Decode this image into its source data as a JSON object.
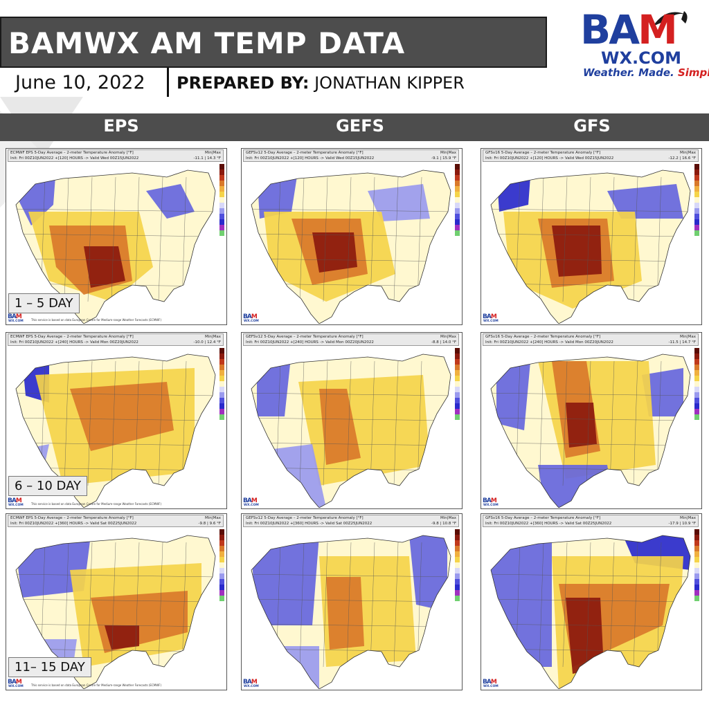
{
  "header": {
    "title": "BAMWX AM TEMP DATA",
    "date": "June 10, 2022",
    "prepared_label": "PREPARED BY:",
    "prepared_name": "JONATHAN KIPPER"
  },
  "logo": {
    "bam": [
      "B",
      "A",
      "M"
    ],
    "wx": "WX.COM",
    "tagline": "Weather. Made.",
    "tagline_accent": "Simple."
  },
  "columns": [
    "EPS",
    "GEFS",
    "GFS"
  ],
  "day_labels": [
    "1 – 5 DAY",
    "6 – 10 DAY",
    "11– 15 DAY"
  ],
  "panels": {
    "eps_1": {
      "title": "ECMWF EPS 5-Day Average – 2-meter Temperature Anomaly [°F]",
      "init": "Init: Fri 00Z10JUN2022 +[120] HOURS -> Valid Wed 00Z15JUN2022",
      "minmax_label": "Min|Max",
      "minmax": "-11.1 | 14.3 °F",
      "credit": "This service is based on data European Centre for Medium-range Weather Forecasts (ECMWF)"
    },
    "gefs_1": {
      "title": "GEFSv12 5-Day Average – 2-meter Temperature Anomaly [°F]",
      "init": "Init: Fri 00Z10JUN2022 +[120] HOURS -> Valid Wed 00Z15JUN2022",
      "minmax_label": "Min|Max",
      "minmax": "-9.1 | 15.9 °F",
      "credit": ""
    },
    "gfs_1": {
      "title": "GFSv16 5-Day Average – 2-meter Temperature Anomaly [°F]",
      "init": "Init: Fri 00Z10JUN2022 +[120] HOURS -> Valid Wed 00Z15JUN2022",
      "minmax_label": "Min|Max",
      "minmax": "-12.2 | 16.6 °F",
      "credit": ""
    },
    "eps_2": {
      "title": "ECMWF EPS 5-Day Average – 2-meter Temperature Anomaly [°F]",
      "init": "Init: Fri 00Z10JUN2022 +[240] HOURS -> Valid Mon 00Z20JUN2022",
      "minmax_label": "Min|Max",
      "minmax": "-10.0 | 12.4 °F",
      "credit": "This service is based on data European Centre for Medium-range Weather Forecasts (ECMWF)"
    },
    "gefs_2": {
      "title": "GEFSv12 5-Day Average – 2-meter Temperature Anomaly [°F]",
      "init": "Init: Fri 00Z10JUN2022 +[240] HOURS -> Valid Mon 00Z20JUN2022",
      "minmax_label": "Min|Max",
      "minmax": "-8.8 | 14.0 °F",
      "credit": ""
    },
    "gfs_2": {
      "title": "GFSv16 5-Day Average – 2-meter Temperature Anomaly [°F]",
      "init": "Init: Fri 00Z10JUN2022 +[240] HOURS -> Valid Mon 00Z20JUN2022",
      "minmax_label": "Min|Max",
      "minmax": "-11.5 | 14.7 °F",
      "credit": ""
    },
    "eps_3": {
      "title": "ECMWF EPS 5-Day Average – 2-meter Temperature Anomaly [°F]",
      "init": "Init: Fri 00Z10JUN2022 +[360] HOURS -> Valid Sat 00Z25JUN2022",
      "minmax_label": "Min|Max",
      "minmax": "-9.8 | 9.6 °F",
      "credit": "This service is based on data European Centre for Medium-range Weather Forecasts (ECMWF)"
    },
    "gefs_3": {
      "title": "GEFSv12 5-Day Average – 2-meter Temperature Anomaly [°F]",
      "init": "Init: Fri 00Z10JUN2022 +[360] HOURS -> Valid Sat 00Z25JUN2022",
      "minmax_label": "Min|Max",
      "minmax": "-9.8 | 10.8 °F",
      "credit": ""
    },
    "gfs_3": {
      "title": "GFSv16 5-Day Average – 2-meter Temperature Anomaly [°F]",
      "init": "Init: Fri 00Z10JUN2022 +[360] HOURS -> Valid Sat 00Z25JUN2022",
      "minmax_label": "Min|Max",
      "minmax": "-17.9 | 10.9 °F",
      "credit": ""
    }
  },
  "legend_values": [
    "20",
    "15",
    "12",
    "9",
    "6",
    "3",
    "0",
    "-3",
    "-6",
    "-9",
    "-12",
    "-20"
  ],
  "colors": {
    "banner": "#4d4d4d",
    "brand_blue": "#1f3f9e",
    "brand_red": "#d42020",
    "anom_strong_warm": "#8b1a0e",
    "anom_warm": "#d9792b",
    "anom_mild_warm": "#f5d44a",
    "anom_neutral": "#fff8d0",
    "anom_mild_cool": "#b8b8f0",
    "anom_cool": "#6666dd",
    "anom_strong_cool": "#2a2acc"
  }
}
